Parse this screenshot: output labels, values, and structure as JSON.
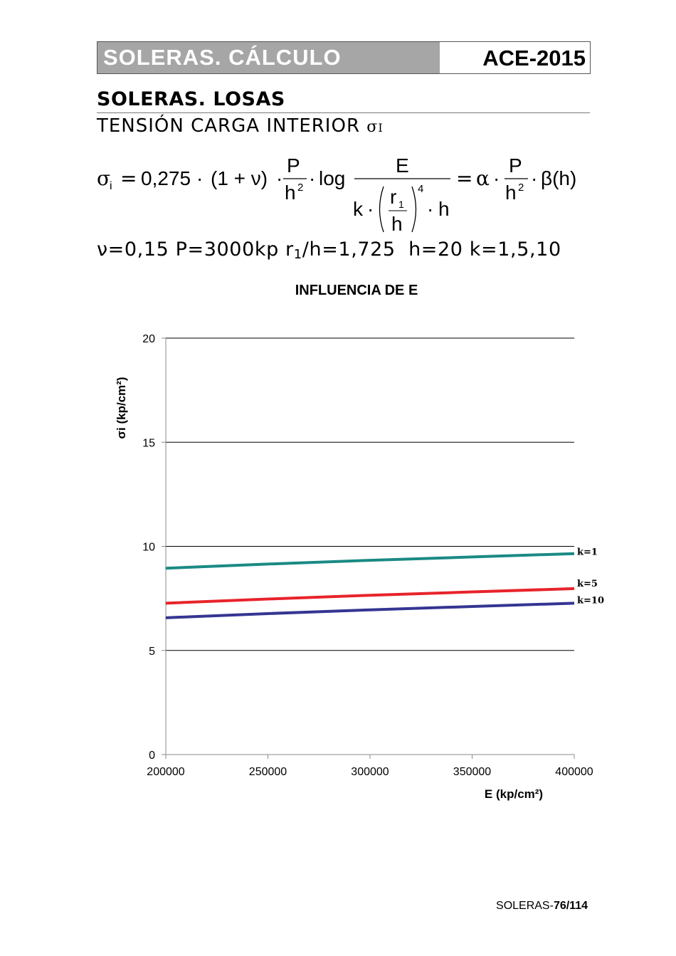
{
  "header": {
    "left_title": "SOLERAS.  CÁLCULO",
    "right_title": "ACE-2015"
  },
  "section_title": "SOLERAS. LOSAS",
  "subtitle": {
    "text": "TENSIÓN CARGA INTERIOR ",
    "symbol": "σ",
    "symbol_sub": "I"
  },
  "formula": {
    "lhs": "σ",
    "lhs_sub": "i",
    "equals": "=",
    "coef": "0,275",
    "factor": "(1 + ν)",
    "P": "P",
    "h": "h",
    "exp2": "2",
    "log": "log",
    "E": "E",
    "k": "k",
    "r": "r",
    "r_sub": "1",
    "exp4": "4",
    "alpha": "α",
    "beta": "β(h)",
    "dot": "·"
  },
  "params": {
    "nu": "ν=0,15",
    "P": "P=3000kp",
    "r_prefix": "r",
    "r_sub": "1",
    "r_suffix": "/h=1,725",
    "h": "h=20",
    "k": "k=1,5,10"
  },
  "chart_data": {
    "type": "line",
    "title": "INFLUENCIA DE E",
    "xlabel": "E (kp/cm²)",
    "ylabel": "σi (kp/cm²)",
    "x": [
      200000,
      250000,
      300000,
      350000,
      400000
    ],
    "xlim": [
      200000,
      400000
    ],
    "ylim": [
      0,
      20
    ],
    "yticks": [
      0,
      5,
      10,
      15,
      20
    ],
    "xticks": [
      200000,
      250000,
      300000,
      350000,
      400000
    ],
    "grid": "horizontal",
    "series": [
      {
        "name": "k=1",
        "color": "#1a8a84",
        "values": [
          8.95,
          9.15,
          9.33,
          9.49,
          9.65
        ]
      },
      {
        "name": "k=5",
        "color": "#e8232b",
        "values": [
          7.27,
          7.47,
          7.65,
          7.81,
          7.97
        ]
      },
      {
        "name": "k=10",
        "color": "#353593",
        "values": [
          6.57,
          6.77,
          6.95,
          7.11,
          7.27
        ]
      }
    ]
  },
  "footer": {
    "prefix": "SOLERAS-",
    "page": "76/114"
  }
}
